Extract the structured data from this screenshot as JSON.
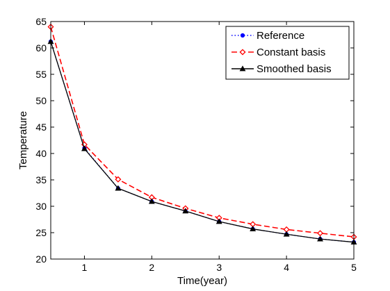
{
  "chart_data": {
    "type": "line",
    "title": "",
    "xlabel": "Time(year)",
    "ylabel": "Temperature",
    "xlim": [
      0.5,
      5
    ],
    "ylim": [
      20,
      65
    ],
    "xticks": [
      1,
      2,
      3,
      4,
      5
    ],
    "yticks": [
      20,
      25,
      30,
      35,
      40,
      45,
      50,
      55,
      60,
      65
    ],
    "x": [
      0.5,
      1,
      1.5,
      2,
      2.5,
      3,
      3.5,
      4,
      4.5,
      5
    ],
    "grid": false,
    "legend_position": "top-right",
    "series": [
      {
        "name": "Reference",
        "values": [
          61.2,
          41.0,
          33.4,
          30.9,
          29.1,
          27.1,
          25.7,
          24.7,
          23.8,
          23.2
        ],
        "color": "#0000ff",
        "line_style": "dotted",
        "marker": "filled-circle"
      },
      {
        "name": "Constant basis",
        "values": [
          64.0,
          41.7,
          35.1,
          31.7,
          29.6,
          27.8,
          26.6,
          25.6,
          24.9,
          24.2
        ],
        "color": "#ff0000",
        "line_style": "dashed",
        "marker": "hollow-diamond"
      },
      {
        "name": "Smoothed basis",
        "values": [
          61.2,
          40.9,
          33.4,
          30.9,
          29.1,
          27.1,
          25.7,
          24.7,
          23.8,
          23.2
        ],
        "color": "#000000",
        "line_style": "solid",
        "marker": "filled-triangle"
      }
    ]
  }
}
